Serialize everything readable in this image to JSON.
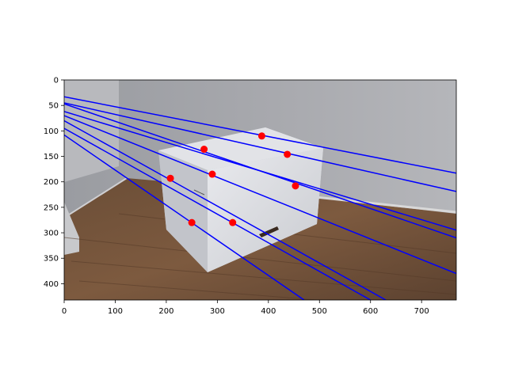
{
  "chart_data": {
    "type": "scatter",
    "title": "",
    "xlabel": "",
    "ylabel": "",
    "xlim": [
      0,
      768
    ],
    "ylim": [
      432,
      0
    ],
    "y_inverted": true,
    "background": "photograph of a white cardboard box on a wooden floor in front of a grey wall",
    "x_ticks": [
      0,
      100,
      200,
      300,
      400,
      500,
      600,
      700
    ],
    "y_ticks": [
      0,
      50,
      100,
      150,
      200,
      250,
      300,
      350,
      400
    ],
    "points": {
      "name": "",
      "color": "#ff0000",
      "x": [
        387,
        437,
        274,
        290,
        453,
        208,
        250,
        330
      ],
      "y": [
        110,
        146,
        136,
        185,
        208,
        193,
        280,
        280
      ]
    },
    "lines": {
      "color": "#0000ff",
      "segments": [
        {
          "x0": 0,
          "y0": 33,
          "x1": 768,
          "y1": 183
        },
        {
          "x0": 0,
          "y0": 45,
          "x1": 768,
          "y1": 219
        },
        {
          "x0": 0,
          "y0": 47,
          "x1": 768,
          "y1": 310
        },
        {
          "x0": 0,
          "y0": 62,
          "x1": 768,
          "y1": 295
        },
        {
          "x0": 0,
          "y0": 70,
          "x1": 768,
          "y1": 380
        },
        {
          "x0": 0,
          "y0": 80,
          "x1": 630,
          "y1": 432
        },
        {
          "x0": 0,
          "y0": 95,
          "x1": 600,
          "y1": 432
        },
        {
          "x0": 0,
          "y0": 108,
          "x1": 470,
          "y1": 432
        }
      ]
    }
  }
}
